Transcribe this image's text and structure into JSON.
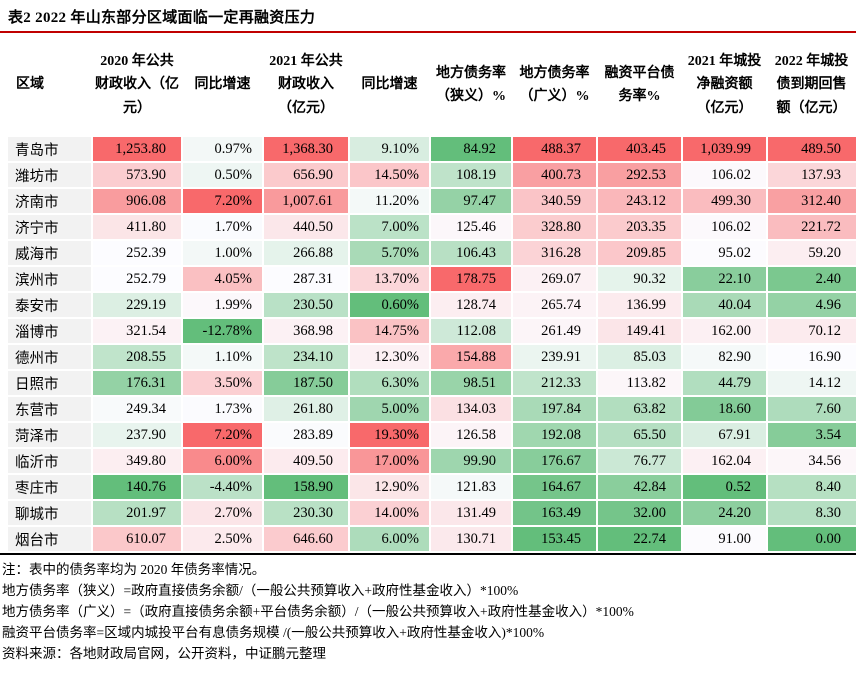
{
  "title": "表2  2022 年山东部分区域面临一定再融资压力",
  "colors": {
    "title_rule": "#C00000",
    "table_bottom_rule": "#000000",
    "region_cell_bg": "#F2F2F2",
    "scale_high_red": "#F8696B",
    "scale_mid_white": "#FCFCFF",
    "scale_low_green": "#63BE7B"
  },
  "table": {
    "columns": [
      "区域",
      "2020 年公共财政收入（亿元）",
      "同比增速",
      "2021 年公共财政收入（亿元）",
      "同比增速",
      "地方债务率（狭义）%",
      "地方债务率（广义）%",
      "融资平台债务率%",
      "2021 年城投净融资额（亿元）",
      "2022 年城投债到期回售额（亿元）"
    ],
    "rows": [
      {
        "region": "青岛市",
        "values": [
          "1,253.80",
          "0.97%",
          "1,368.30",
          "9.10%",
          "84.92",
          "488.37",
          "403.45",
          "1,039.99",
          "489.50"
        ]
      },
      {
        "region": "潍坊市",
        "values": [
          "573.90",
          "0.50%",
          "656.90",
          "14.50%",
          "108.19",
          "400.73",
          "292.53",
          "106.02",
          "137.93"
        ]
      },
      {
        "region": "济南市",
        "values": [
          "906.08",
          "7.20%",
          "1,007.61",
          "11.20%",
          "97.47",
          "340.59",
          "243.12",
          "499.30",
          "312.40"
        ]
      },
      {
        "region": "济宁市",
        "values": [
          "411.80",
          "1.70%",
          "440.50",
          "7.00%",
          "125.46",
          "328.80",
          "203.35",
          "106.02",
          "221.72"
        ]
      },
      {
        "region": "威海市",
        "values": [
          "252.39",
          "1.00%",
          "266.88",
          "5.70%",
          "106.43",
          "316.28",
          "209.85",
          "95.02",
          "59.20"
        ]
      },
      {
        "region": "滨州市",
        "values": [
          "252.79",
          "4.05%",
          "287.31",
          "13.70%",
          "178.75",
          "269.07",
          "90.32",
          "22.10",
          "2.40"
        ]
      },
      {
        "region": "泰安市",
        "values": [
          "229.19",
          "1.99%",
          "230.50",
          "0.60%",
          "128.74",
          "265.74",
          "136.99",
          "40.04",
          "4.96"
        ]
      },
      {
        "region": "淄博市",
        "values": [
          "321.54",
          "-12.78%",
          "368.98",
          "14.75%",
          "112.08",
          "261.49",
          "149.41",
          "162.00",
          "70.12"
        ]
      },
      {
        "region": "德州市",
        "values": [
          "208.55",
          "1.10%",
          "234.10",
          "12.30%",
          "154.88",
          "239.91",
          "85.03",
          "82.90",
          "16.90"
        ]
      },
      {
        "region": "日照市",
        "values": [
          "176.31",
          "3.50%",
          "187.50",
          "6.30%",
          "98.51",
          "212.33",
          "113.82",
          "44.79",
          "14.12"
        ]
      },
      {
        "region": "东营市",
        "values": [
          "249.34",
          "1.73%",
          "261.80",
          "5.00%",
          "134.03",
          "197.84",
          "63.82",
          "18.60",
          "7.60"
        ]
      },
      {
        "region": "菏泽市",
        "values": [
          "237.90",
          "7.20%",
          "283.89",
          "19.30%",
          "126.58",
          "192.08",
          "65.50",
          "67.91",
          "3.54"
        ]
      },
      {
        "region": "临沂市",
        "values": [
          "349.80",
          "6.00%",
          "409.50",
          "17.00%",
          "99.90",
          "176.67",
          "76.77",
          "162.04",
          "34.56"
        ]
      },
      {
        "region": "枣庄市",
        "values": [
          "140.76",
          "-4.40%",
          "158.90",
          "12.90%",
          "121.83",
          "164.67",
          "42.84",
          "0.52",
          "8.40"
        ]
      },
      {
        "region": "聊城市",
        "values": [
          "201.97",
          "2.70%",
          "230.30",
          "14.00%",
          "131.49",
          "163.49",
          "32.00",
          "24.20",
          "8.30"
        ]
      },
      {
        "region": "烟台市",
        "values": [
          "610.07",
          "2.50%",
          "646.60",
          "6.00%",
          "130.71",
          "153.45",
          "22.74",
          "91.00",
          "0.00"
        ]
      }
    ]
  },
  "notes": [
    "注：表中的债务率均为 2020 年债务率情况。",
    "地方债务率（狭义）=政府直接债务余额/（一般公共预算收入+政府性基金收入）*100%",
    "地方债务率（广义）=（政府直接债务余额+平台债务余额）/（一般公共预算收入+政府性基金收入）*100%",
    "融资平台债务率=区域内城投平台有息债务规模 /(一般公共预算收入+政府性基金收入)*100%",
    "资料来源：各地财政局官网，公开资料，中证鹏元整理"
  ]
}
